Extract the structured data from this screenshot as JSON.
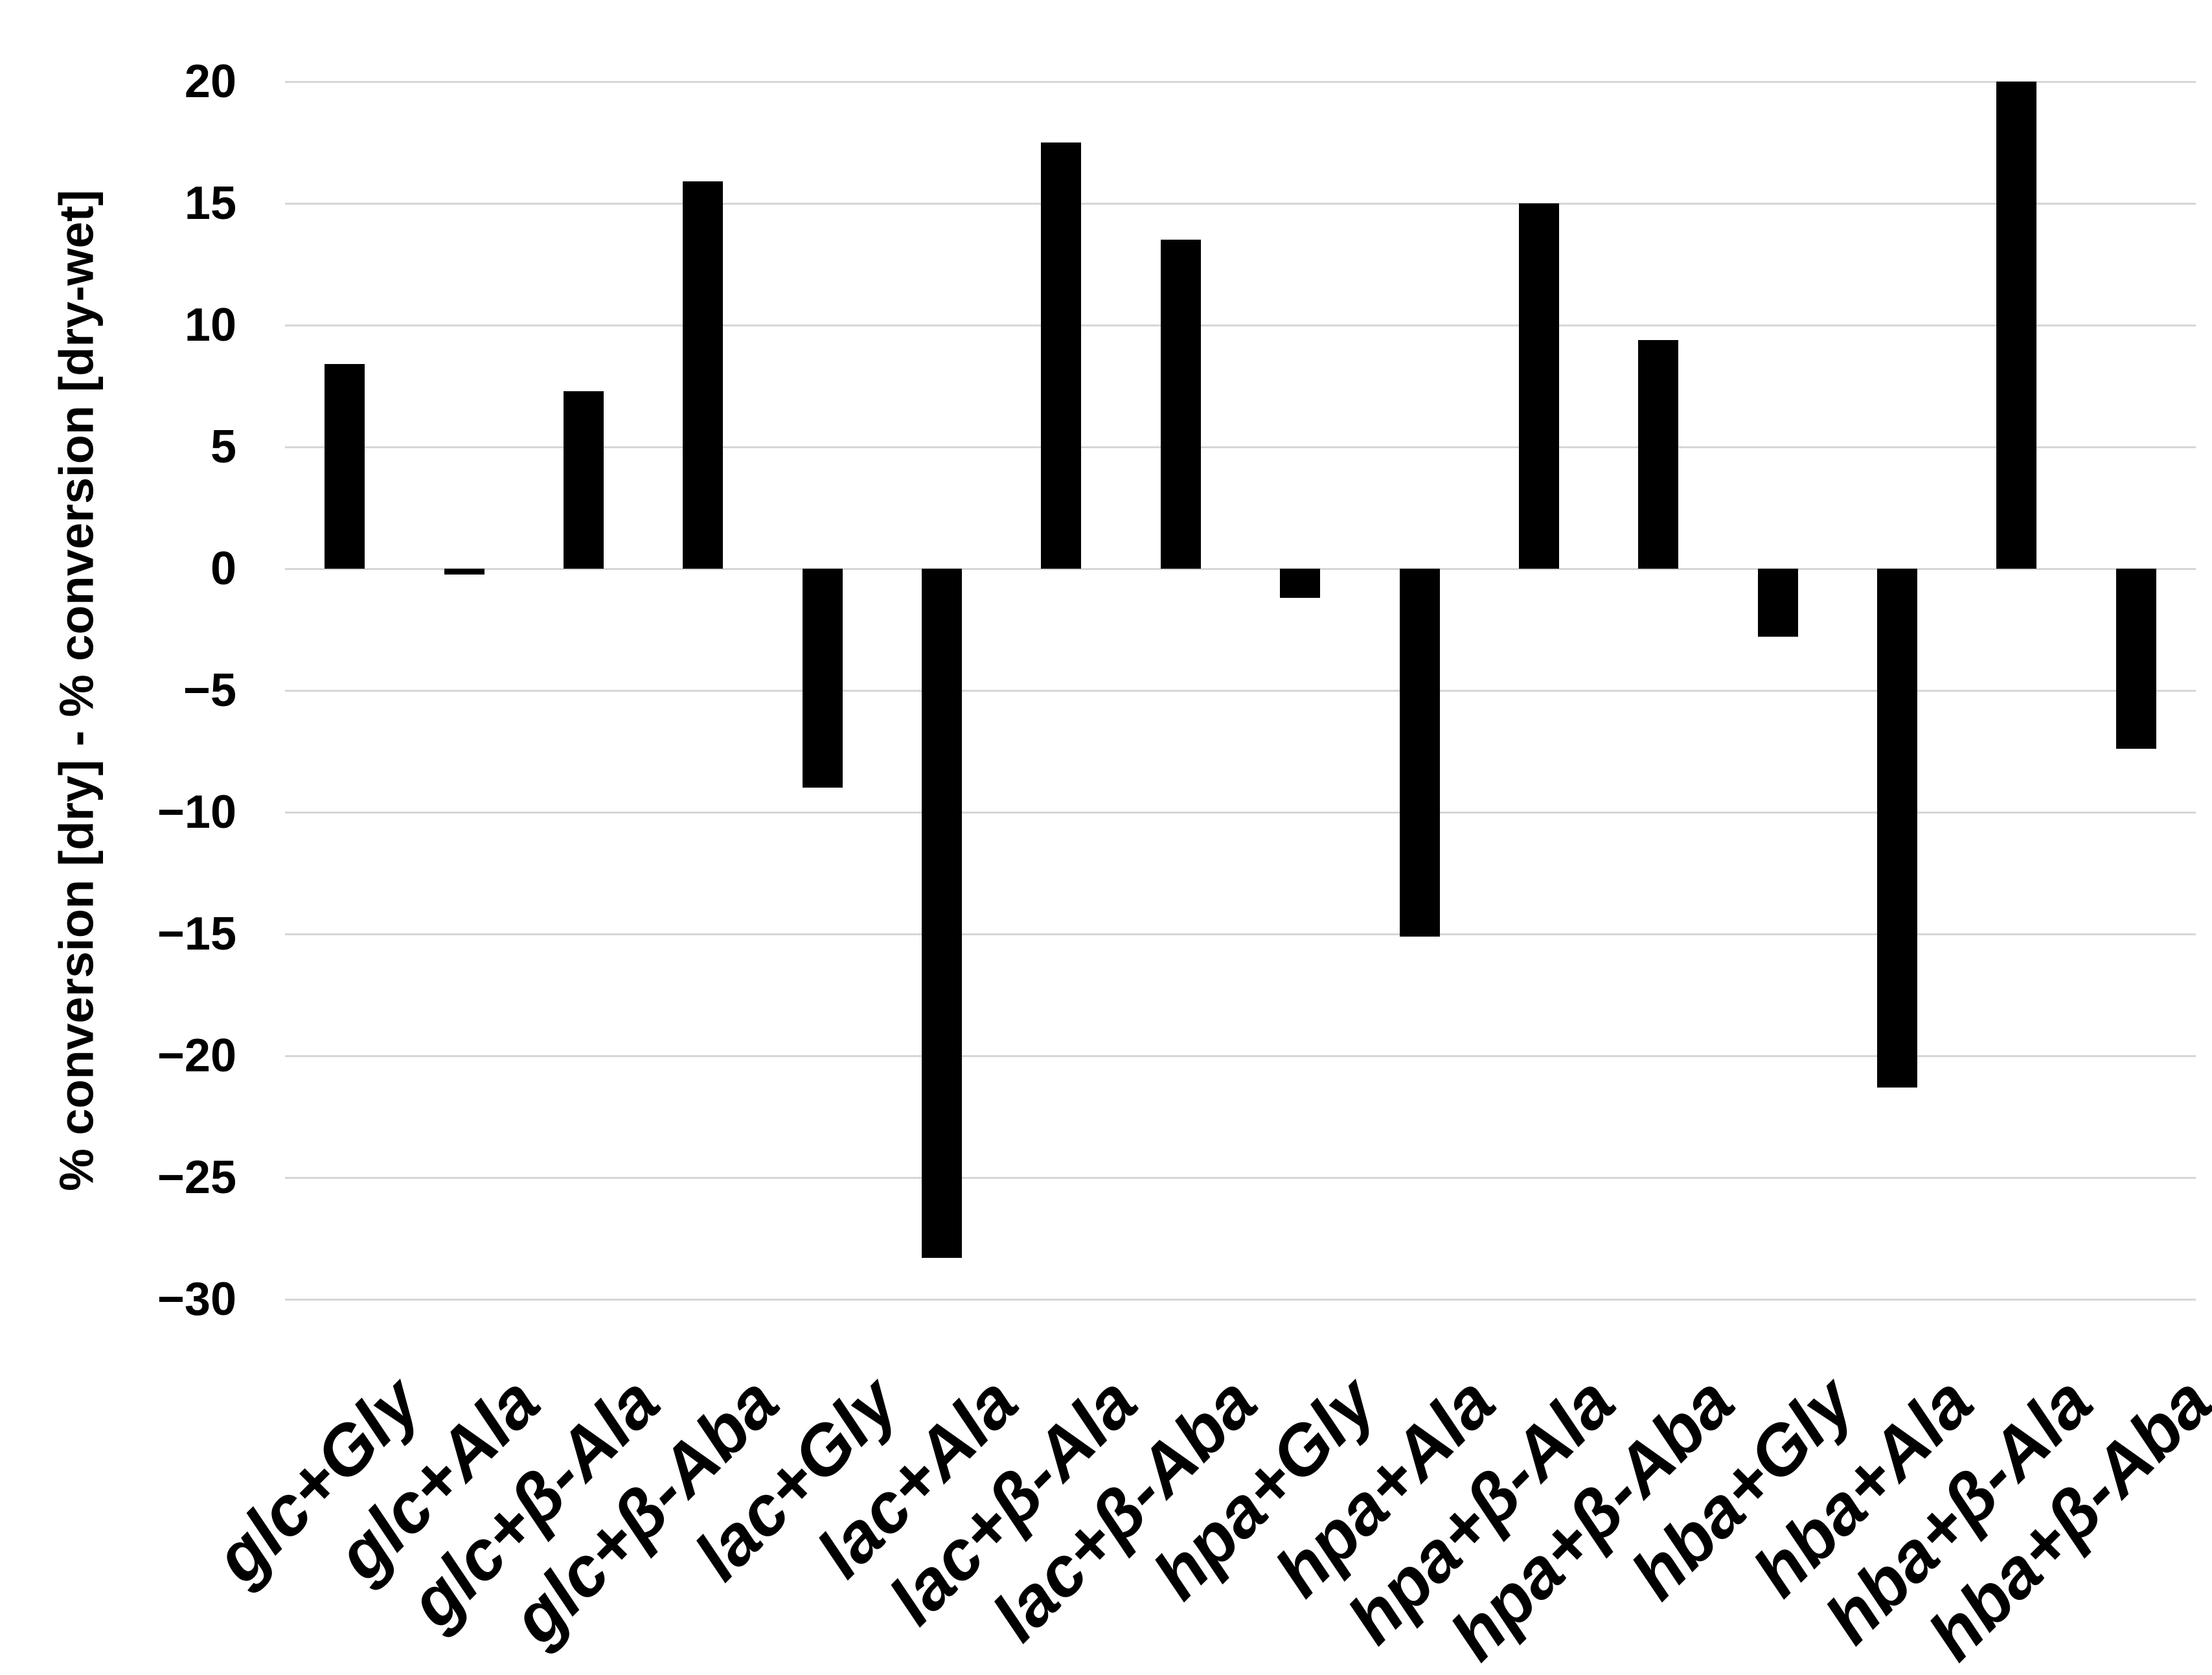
{
  "chart_data": {
    "type": "bar",
    "title": "",
    "xlabel": "",
    "ylabel": "% conversion [dry] - % conversion [dry-wet]",
    "categories": [
      "glc+Gly",
      "glc+Ala",
      "glc+β-Ala",
      "glc+β-Aba",
      "lac+Gly",
      "lac+Ala",
      "lac+β-Ala",
      "lac+β-Aba",
      "hpa+Gly",
      "hpa+Ala",
      "hpa+β-Ala",
      "hpa+β-Aba",
      "hba+Gly",
      "hba+Ala",
      "hba+β-Ala",
      "hba+β-Aba"
    ],
    "values": [
      8.4,
      -0.25,
      7.3,
      15.9,
      -9.0,
      -28.3,
      17.5,
      13.5,
      -1.2,
      -15.1,
      15.0,
      9.4,
      -2.8,
      -21.3,
      20.0,
      -7.4
    ],
    "ylim": [
      -30,
      20
    ],
    "yticks": [
      20,
      15,
      10,
      5,
      0,
      -5,
      -10,
      -15,
      -20,
      -25,
      -30
    ],
    "grid": "horizontal-only",
    "legend": "none",
    "bar_color": "#000000",
    "gridline_color": "#d6d6d6",
    "background_color": "#ffffff",
    "minus_glyph": "−"
  }
}
